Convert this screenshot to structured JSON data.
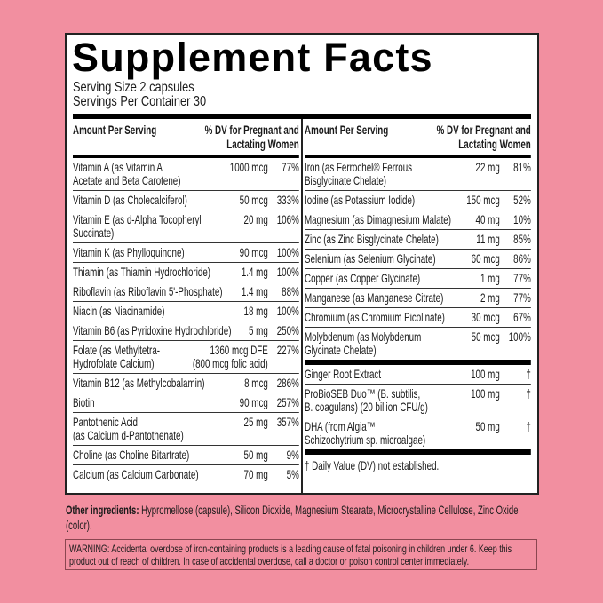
{
  "title": "Supplement Facts",
  "serving_size": "Serving Size 2 capsules",
  "servings_per_container": "Servings Per Container 30",
  "header": {
    "amount": "Amount Per Serving",
    "dv": "% DV for Pregnant and\nLactating Women"
  },
  "left_rows": [
    {
      "name": "Vitamin A (as Vitamin A\nAcetate and Beta Carotene)",
      "amount": "1000 mcg",
      "dv": "77%"
    },
    {
      "name": "Vitamin D (as Cholecalciferol)",
      "amount": "50 mcg",
      "dv": "333%"
    },
    {
      "name": "Vitamin E (as d-Alpha Tocopheryl\nSuccinate)",
      "amount": "20 mg",
      "dv": "106%"
    },
    {
      "name": "Vitamin K (as Phylloquinone)",
      "amount": "90 mcg",
      "dv": "100%"
    },
    {
      "name": "Thiamin (as Thiamin Hydrochloride)",
      "amount": "1.4 mg",
      "dv": "100%"
    },
    {
      "name": "Riboflavin (as Riboflavin 5'-Phosphate)",
      "amount": "1.4 mg",
      "dv": "88%"
    },
    {
      "name": "Niacin (as Niacinamide)",
      "amount": "18 mg",
      "dv": "100%"
    },
    {
      "name": "Vitamin B6 (as Pyridoxine Hydrochloride)",
      "amount": "5 mg",
      "dv": "250%"
    },
    {
      "name": "Folate (as Methyltetra-\nHydrofolate Calcium)",
      "amount": "1360 mcg DFE\n(800 mcg folic acid)",
      "dv": "227%"
    },
    {
      "name": "Vitamin B12 (as Methylcobalamin)",
      "amount": "8 mcg",
      "dv": "286%"
    },
    {
      "name": "Biotin",
      "amount": "90 mcg",
      "dv": "257%"
    },
    {
      "name": "Pantothenic Acid\n(as Calcium d-Pantothenate)",
      "amount": "25 mg",
      "dv": "357%"
    },
    {
      "name": "Choline (as Choline Bitartrate)",
      "amount": "50 mg",
      "dv": "9%"
    },
    {
      "name": "Calcium (as Calcium Carbonate)",
      "amount": "70 mg",
      "dv": "5%"
    }
  ],
  "right_rows": [
    {
      "name": "Iron (as Ferrochel® Ferrous\nBisglycinate Chelate)",
      "amount": "22 mg",
      "dv": "81%"
    },
    {
      "name": "Iodine (as Potassium Iodide)",
      "amount": "150 mcg",
      "dv": "52%"
    },
    {
      "name": "Magnesium (as Dimagnesium Malate)",
      "amount": "40 mg",
      "dv": "10%"
    },
    {
      "name": "Zinc (as Zinc Bisglycinate Chelate)",
      "amount": "11 mg",
      "dv": "85%"
    },
    {
      "name": "Selenium (as Selenium Glycinate)",
      "amount": "60 mcg",
      "dv": "86%"
    },
    {
      "name": "Copper (as Copper Glycinate)",
      "amount": "1 mg",
      "dv": "77%"
    },
    {
      "name": "Manganese (as Manganese Citrate)",
      "amount": "2 mg",
      "dv": "77%"
    },
    {
      "name": "Chromium (as Chromium Picolinate)",
      "amount": "30 mcg",
      "dv": "67%"
    },
    {
      "name": "Molybdenum (as Molybdenum\nGlycinate Chelate)",
      "amount": "50 mcg",
      "dv": "100%"
    }
  ],
  "other_rows": [
    {
      "name": "Ginger Root Extract",
      "amount": "100 mg",
      "dv": "†"
    },
    {
      "name": "ProBioSEB Duo™ (B. subtilis,\nB. coagulans) (20 billion CFU/g)",
      "amount": "100 mg",
      "dv": "†"
    },
    {
      "name": "DHA (from Algia™\nSchizochytrium sp. microalgae)",
      "amount": "50 mg",
      "dv": "†"
    }
  ],
  "footnote": "† Daily Value (DV) not established.",
  "other_ingredients": {
    "label": "Other ingredients:",
    "text": " Hypromellose (capsule), Silicon Dioxide, Magnesium Stearate, Microcrystalline Cellulose, Zinc Oxide (color)."
  },
  "warning": "WARNING: Accidental overdose of iron-containing products is a leading cause of fatal poisoning in children under 6. Keep this product out of reach of children. In case of accidental overdose, call a doctor or poison control center immediately.",
  "colors": {
    "background": "#f28fa0",
    "panel": "#ffffff",
    "ink": "#000000"
  }
}
